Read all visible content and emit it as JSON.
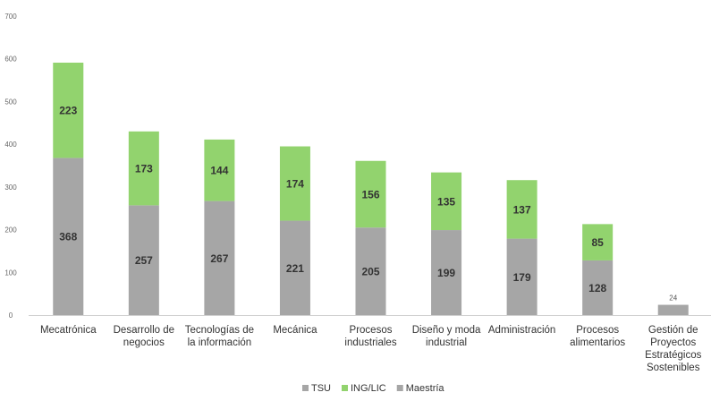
{
  "chart_data": {
    "type": "bar",
    "stacked": true,
    "title": "",
    "xlabel": "",
    "ylabel": "",
    "ylim": [
      0,
      700
    ],
    "yticks": [
      0,
      100,
      200,
      300,
      400,
      500,
      600,
      700
    ],
    "grid": false,
    "legend_position": "bottom",
    "categories": [
      [
        "Mecatrónica"
      ],
      [
        "Desarrollo de",
        "negocios"
      ],
      [
        "Tecnologías de",
        "la información"
      ],
      [
        "Mecánica"
      ],
      [
        "Procesos",
        "industriales"
      ],
      [
        "Diseño y moda",
        "industrial"
      ],
      [
        "Administración"
      ],
      [
        "Procesos",
        "alimentarios"
      ],
      [
        "Gestión de",
        "Proyectos",
        "Estratégicos",
        "Sostenibles"
      ]
    ],
    "series": [
      {
        "name": "TSU",
        "color": "#a6a6a6",
        "values": [
          368,
          257,
          267,
          221,
          205,
          199,
          179,
          128,
          null
        ]
      },
      {
        "name": "ING/LIC",
        "color": "#92d36e",
        "values": [
          223,
          173,
          144,
          174,
          156,
          135,
          137,
          85,
          null
        ]
      },
      {
        "name": "Maestría",
        "color": "#a6a6a6",
        "values": [
          null,
          null,
          null,
          null,
          null,
          null,
          null,
          null,
          24
        ]
      }
    ]
  }
}
